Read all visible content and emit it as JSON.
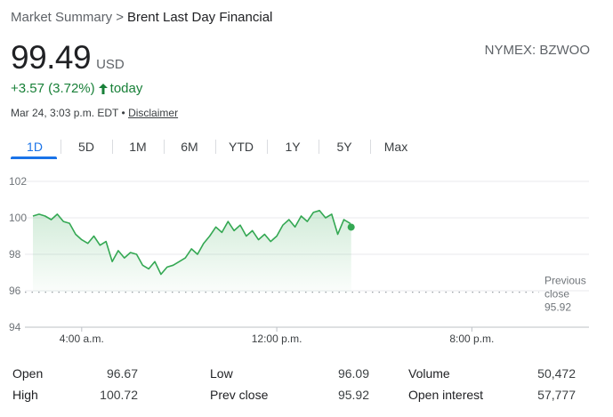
{
  "breadcrumb": {
    "root": "Market Summary",
    "separator": ">",
    "current": "Brent Last Day Financial"
  },
  "quote": {
    "price": "99.49",
    "currency": "USD",
    "ticker": "NYMEX: BZWOO",
    "change": "+3.57 (3.72%)",
    "change_direction": "up",
    "change_period": "today",
    "timestamp": "Mar 24, 3:03 p.m. EDT",
    "separator": "•",
    "disclaimer_label": "Disclaimer"
  },
  "range_tabs": [
    {
      "label": "1D",
      "active": true
    },
    {
      "label": "5D",
      "active": false
    },
    {
      "label": "1M",
      "active": false
    },
    {
      "label": "6M",
      "active": false
    },
    {
      "label": "YTD",
      "active": false
    },
    {
      "label": "1Y",
      "active": false
    },
    {
      "label": "5Y",
      "active": false
    },
    {
      "label": "Max",
      "active": false
    }
  ],
  "colors": {
    "positive": "#188038",
    "accent": "#1a73e8",
    "line": "#34a853"
  },
  "chart_data": {
    "type": "area",
    "ylim": [
      94,
      102
    ],
    "yticks": [
      "102",
      "100",
      "98",
      "96",
      "94"
    ],
    "xlim": [
      "2:00 a.m.",
      "11:59 p.m."
    ],
    "xticks": [
      "4:00 a.m.",
      "12:00 p.m.",
      "8:00 p.m."
    ],
    "previous_close": {
      "value": 95.92,
      "label_line1": "Previous",
      "label_line2": "close",
      "label_value": "95.92"
    },
    "series": [
      {
        "x": [
          "2:00 a.m.",
          "2:15 a.m.",
          "2:30 a.m.",
          "2:45 a.m.",
          "3:00 a.m.",
          "3:15 a.m.",
          "3:30 a.m.",
          "3:45 a.m.",
          "4:00 a.m.",
          "4:15 a.m.",
          "4:30 a.m.",
          "4:45 a.m.",
          "5:00 a.m.",
          "5:15 a.m.",
          "5:30 a.m.",
          "5:45 a.m.",
          "6:00 a.m.",
          "6:15 a.m.",
          "6:30 a.m.",
          "6:45 a.m.",
          "7:00 a.m.",
          "7:15 a.m.",
          "7:30 a.m.",
          "7:45 a.m.",
          "8:00 a.m.",
          "8:15 a.m.",
          "8:30 a.m.",
          "8:45 a.m.",
          "9:00 a.m.",
          "9:15 a.m.",
          "9:30 a.m.",
          "9:45 a.m.",
          "10:00 a.m.",
          "10:15 a.m.",
          "10:30 a.m.",
          "10:45 a.m.",
          "11:00 a.m.",
          "11:15 a.m.",
          "11:30 a.m.",
          "11:45 a.m.",
          "12:00 p.m.",
          "12:15 p.m.",
          "12:30 p.m.",
          "12:45 p.m.",
          "1:00 p.m.",
          "1:15 p.m.",
          "1:30 p.m.",
          "1:45 p.m.",
          "2:00 p.m.",
          "2:15 p.m.",
          "2:30 p.m.",
          "2:45 p.m.",
          "3:00 p.m.",
          "3:03 p.m."
        ],
        "values": [
          100.1,
          100.2,
          100.1,
          99.9,
          100.2,
          99.8,
          99.7,
          99.1,
          98.8,
          98.6,
          99.0,
          98.5,
          98.7,
          97.6,
          98.2,
          97.8,
          98.1,
          98.0,
          97.4,
          97.2,
          97.6,
          96.9,
          97.3,
          97.4,
          97.6,
          97.8,
          98.3,
          98.0,
          98.6,
          99.0,
          99.5,
          99.2,
          99.8,
          99.3,
          99.6,
          99.0,
          99.3,
          98.8,
          99.1,
          98.7,
          99.0,
          99.6,
          99.9,
          99.5,
          100.1,
          99.8,
          100.3,
          100.4,
          100.0,
          100.2,
          99.1,
          99.9,
          99.7,
          99.49
        ]
      }
    ]
  },
  "stats": [
    [
      {
        "label": "Open",
        "value": "96.67"
      },
      {
        "label": "Low",
        "value": "96.09"
      },
      {
        "label": "Volume",
        "value": "50,472"
      }
    ],
    [
      {
        "label": "High",
        "value": "100.72"
      },
      {
        "label": "Prev close",
        "value": "95.92"
      },
      {
        "label": "Open interest",
        "value": "57,777"
      }
    ]
  ]
}
